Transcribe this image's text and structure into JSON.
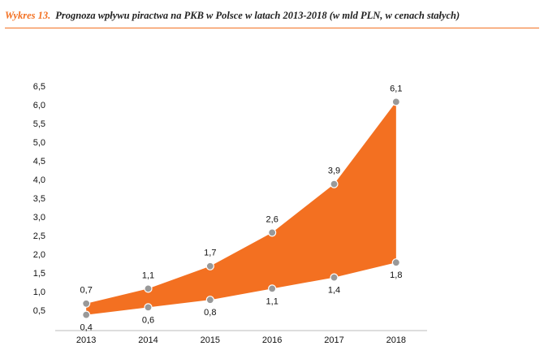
{
  "chart_data": {
    "type": "area_band",
    "figure_label": "Wykres 13.",
    "title": "Prognoza wpływu piractwa na PKB w Polsce w latach 2013-2018 (w mld PLN, w cenach stałych)",
    "categories": [
      "2013",
      "2014",
      "2015",
      "2016",
      "2017",
      "2018"
    ],
    "fill_color": "#f37021",
    "series": [
      {
        "color": "#999999",
        "values": [
          0.7,
          1.1,
          1.7,
          2.6,
          3.9,
          6.1
        ],
        "value_labels": [
          "0,7",
          "1,1",
          "1,7",
          "2,6",
          "3,9",
          "6,1"
        ]
      },
      {
        "color": "#999999",
        "values": [
          0.4,
          0.6,
          0.8,
          1.1,
          1.4,
          1.8
        ],
        "value_labels": [
          "0,4",
          "0,6",
          "0,8",
          "1,1",
          "1,4",
          "1,8"
        ]
      }
    ],
    "ylim": [
      0,
      6.5
    ],
    "yticks": [
      {
        "value": 0.5,
        "label": "0,5"
      },
      {
        "value": 1,
        "label": "1,0"
      },
      {
        "value": 1.5,
        "label": "1,5"
      },
      {
        "value": 2,
        "label": "2,0"
      },
      {
        "value": 2.5,
        "label": "2,5"
      },
      {
        "value": 3,
        "label": "3,0"
      },
      {
        "value": 3.5,
        "label": "3,5"
      },
      {
        "value": 4,
        "label": "4,0"
      },
      {
        "value": 4.5,
        "label": "4,5"
      },
      {
        "value": 5,
        "label": "5,0"
      },
      {
        "value": 5.5,
        "label": "5,5"
      },
      {
        "value": 6,
        "label": "6,0"
      },
      {
        "value": 6.5,
        "label": "6,5"
      }
    ]
  }
}
